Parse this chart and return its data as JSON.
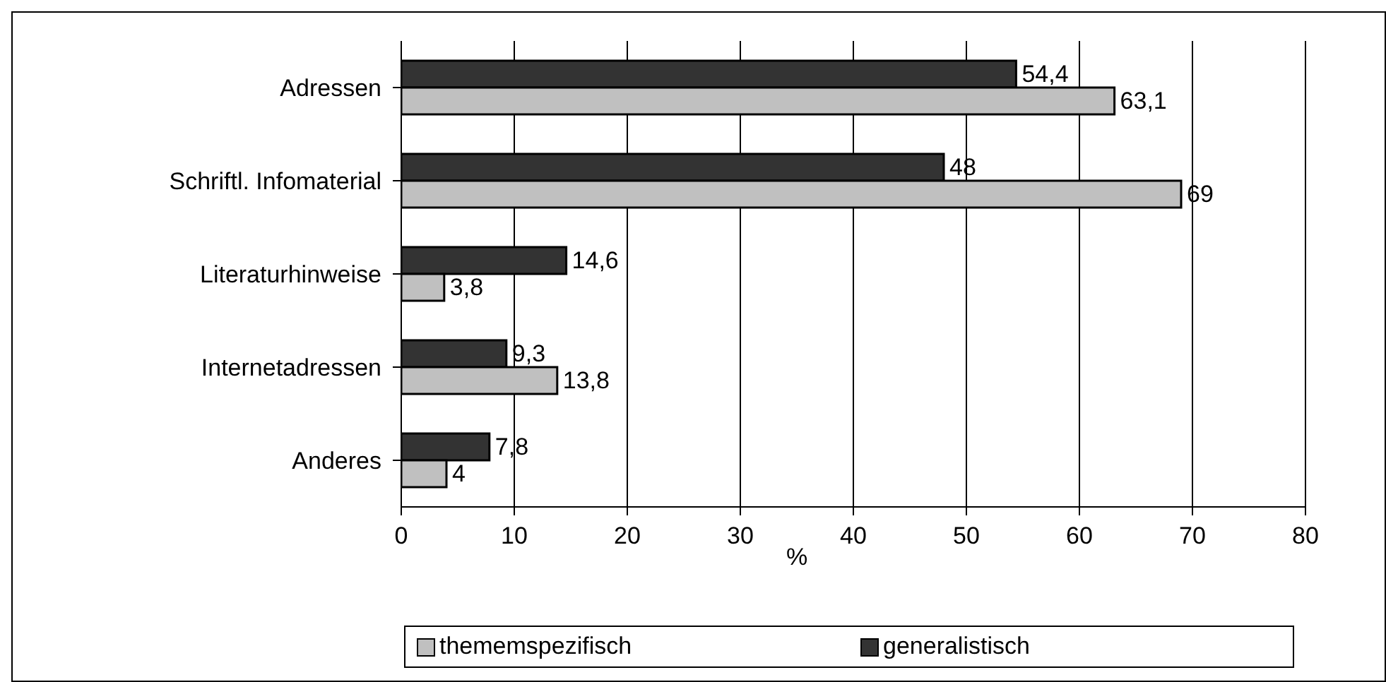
{
  "chart_data": {
    "type": "bar",
    "orientation": "horizontal",
    "xlabel": "%",
    "categories": [
      "Adressen",
      "Schriftl. Infomaterial",
      "Literaturhinweise",
      "Internetadressen",
      "Anderes"
    ],
    "series": [
      {
        "name": "generalistisch",
        "color": "#333333",
        "values": [
          54.4,
          48,
          14.6,
          9.3,
          7.8
        ],
        "value_labels": [
          "54,4",
          "48",
          "14,6",
          "9,3",
          "7,8"
        ]
      },
      {
        "name": "thememspezifisch",
        "color": "#c0c0c0",
        "values": [
          63.1,
          69,
          3.8,
          13.8,
          4
        ],
        "value_labels": [
          "63,1",
          "69",
          "3,8",
          "13,8",
          "4"
        ]
      }
    ],
    "xlim": [
      0,
      80
    ],
    "xticks": [
      0,
      10,
      20,
      30,
      40,
      50,
      60,
      70,
      80
    ],
    "grid": "x",
    "legend": "bottom"
  }
}
